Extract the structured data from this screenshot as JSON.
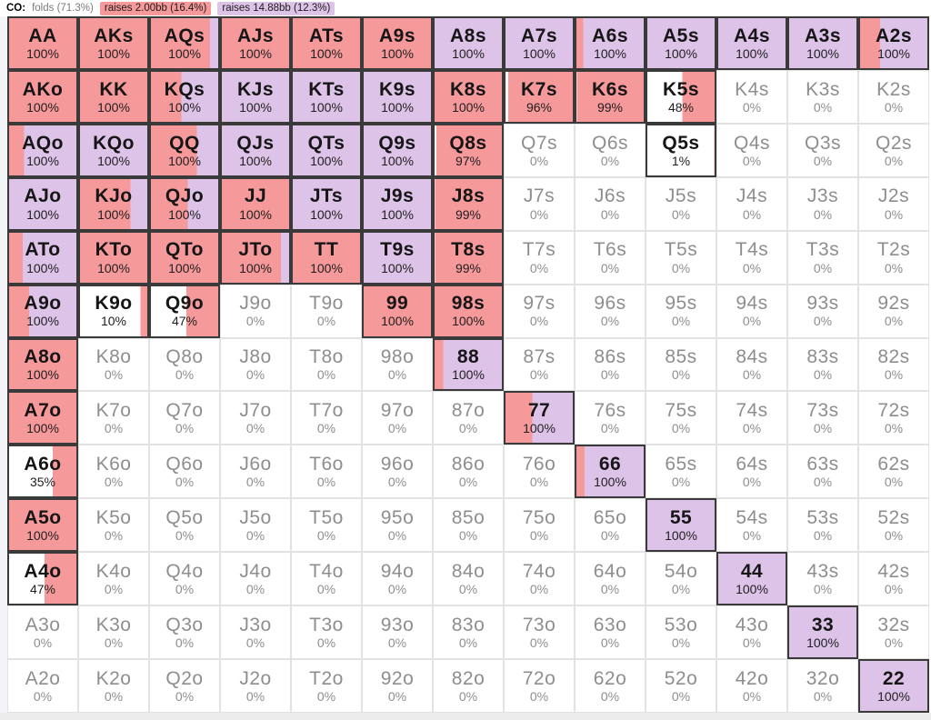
{
  "header": {
    "position_label": "CO:",
    "legend": [
      {
        "action": "fold",
        "label": "folds (71.3%)",
        "color": ""
      },
      {
        "action": "raise_small",
        "label": "raises 2.00bb (16.4%)",
        "color": "#f6999b"
      },
      {
        "action": "raise_big",
        "label": "raises 14.88bb (12.3%)",
        "color": "#ddc3e8"
      }
    ]
  },
  "colors": {
    "raise_small": "#f6999b",
    "raise_big": "#ddc3e8",
    "fold": "#ffffff",
    "active_border": "#3a3a3a",
    "inactive_border": "#e2e2e2",
    "inactive_text": "#8e8e8e",
    "active_text": "#161616"
  },
  "cell_format": [
    "hand",
    "percent_label",
    "fold_pct",
    "raise_small_pct",
    "raise_big_pct"
  ],
  "grid": {
    "rows": [
      [
        [
          "AA",
          "100%",
          0,
          100,
          0
        ],
        [
          "AKs",
          "100%",
          0,
          100,
          0
        ],
        [
          "AQs",
          "100%",
          0,
          88,
          12
        ],
        [
          "AJs",
          "100%",
          0,
          100,
          0
        ],
        [
          "ATs",
          "100%",
          0,
          100,
          0
        ],
        [
          "A9s",
          "100%",
          0,
          100,
          0
        ],
        [
          "A8s",
          "100%",
          0,
          0,
          100
        ],
        [
          "A7s",
          "100%",
          0,
          0,
          100
        ],
        [
          "A6s",
          "100%",
          0,
          10,
          90
        ],
        [
          "A5s",
          "100%",
          0,
          0,
          100
        ],
        [
          "A4s",
          "100%",
          0,
          0,
          100
        ],
        [
          "A3s",
          "100%",
          0,
          0,
          100
        ],
        [
          "A2s",
          "100%",
          0,
          30,
          70
        ]
      ],
      [
        [
          "AKo",
          "100%",
          0,
          100,
          0
        ],
        [
          "KK",
          "100%",
          0,
          100,
          0
        ],
        [
          "KQs",
          "100%",
          0,
          45,
          55
        ],
        [
          "KJs",
          "100%",
          0,
          0,
          100
        ],
        [
          "KTs",
          "100%",
          0,
          0,
          100
        ],
        [
          "K9s",
          "100%",
          0,
          0,
          100
        ],
        [
          "K8s",
          "100%",
          0,
          100,
          0
        ],
        [
          "K7s",
          "96%",
          4,
          96,
          0
        ],
        [
          "K6s",
          "99%",
          1,
          99,
          0
        ],
        [
          "K5s",
          "48%",
          52,
          48,
          0
        ],
        [
          "K4s",
          "0%",
          100,
          0,
          0
        ],
        [
          "K3s",
          "0%",
          100,
          0,
          0
        ],
        [
          "K2s",
          "0%",
          100,
          0,
          0
        ]
      ],
      [
        [
          "AQo",
          "100%",
          0,
          22,
          78
        ],
        [
          "KQo",
          "100%",
          0,
          0,
          100
        ],
        [
          "QQ",
          "100%",
          0,
          68,
          32
        ],
        [
          "QJs",
          "100%",
          0,
          0,
          100
        ],
        [
          "QTs",
          "100%",
          0,
          0,
          100
        ],
        [
          "Q9s",
          "100%",
          0,
          0,
          100
        ],
        [
          "Q8s",
          "97%",
          3,
          97,
          0
        ],
        [
          "Q7s",
          "0%",
          100,
          0,
          0
        ],
        [
          "Q6s",
          "0%",
          100,
          0,
          0
        ],
        [
          "Q5s",
          "1%",
          99,
          1,
          0
        ],
        [
          "Q4s",
          "0%",
          100,
          0,
          0
        ],
        [
          "Q3s",
          "0%",
          100,
          0,
          0
        ],
        [
          "Q2s",
          "0%",
          100,
          0,
          0
        ]
      ],
      [
        [
          "AJo",
          "100%",
          0,
          0,
          100
        ],
        [
          "KJo",
          "100%",
          0,
          75,
          25
        ],
        [
          "QJo",
          "100%",
          0,
          55,
          45
        ],
        [
          "JJ",
          "100%",
          0,
          100,
          0
        ],
        [
          "JTs",
          "100%",
          0,
          0,
          100
        ],
        [
          "J9s",
          "100%",
          0,
          0,
          100
        ],
        [
          "J8s",
          "99%",
          1,
          99,
          0
        ],
        [
          "J7s",
          "0%",
          100,
          0,
          0
        ],
        [
          "J6s",
          "0%",
          100,
          0,
          0
        ],
        [
          "J5s",
          "0%",
          100,
          0,
          0
        ],
        [
          "J4s",
          "0%",
          100,
          0,
          0
        ],
        [
          "J3s",
          "0%",
          100,
          0,
          0
        ],
        [
          "J2s",
          "0%",
          100,
          0,
          0
        ]
      ],
      [
        [
          "ATo",
          "100%",
          0,
          20,
          80
        ],
        [
          "KTo",
          "100%",
          0,
          100,
          0
        ],
        [
          "QTo",
          "100%",
          0,
          100,
          0
        ],
        [
          "JTo",
          "100%",
          0,
          88,
          12
        ],
        [
          "TT",
          "100%",
          0,
          100,
          0
        ],
        [
          "T9s",
          "100%",
          0,
          0,
          100
        ],
        [
          "T8s",
          "99%",
          1,
          99,
          0
        ],
        [
          "T7s",
          "0%",
          100,
          0,
          0
        ],
        [
          "T6s",
          "0%",
          100,
          0,
          0
        ],
        [
          "T5s",
          "0%",
          100,
          0,
          0
        ],
        [
          "T4s",
          "0%",
          100,
          0,
          0
        ],
        [
          "T3s",
          "0%",
          100,
          0,
          0
        ],
        [
          "T2s",
          "0%",
          100,
          0,
          0
        ]
      ],
      [
        [
          "A9o",
          "100%",
          0,
          30,
          70
        ],
        [
          "K9o",
          "10%",
          90,
          10,
          0
        ],
        [
          "Q9o",
          "47%",
          53,
          47,
          0
        ],
        [
          "J9o",
          "0%",
          100,
          0,
          0
        ],
        [
          "T9o",
          "0%",
          100,
          0,
          0
        ],
        [
          "99",
          "100%",
          0,
          100,
          0
        ],
        [
          "98s",
          "100%",
          0,
          100,
          0
        ],
        [
          "97s",
          "0%",
          100,
          0,
          0
        ],
        [
          "96s",
          "0%",
          100,
          0,
          0
        ],
        [
          "95s",
          "0%",
          100,
          0,
          0
        ],
        [
          "94s",
          "0%",
          100,
          0,
          0
        ],
        [
          "93s",
          "0%",
          100,
          0,
          0
        ],
        [
          "92s",
          "0%",
          100,
          0,
          0
        ]
      ],
      [
        [
          "A8o",
          "100%",
          0,
          100,
          0
        ],
        [
          "K8o",
          "0%",
          100,
          0,
          0
        ],
        [
          "Q8o",
          "0%",
          100,
          0,
          0
        ],
        [
          "J8o",
          "0%",
          100,
          0,
          0
        ],
        [
          "T8o",
          "0%",
          100,
          0,
          0
        ],
        [
          "98o",
          "0%",
          100,
          0,
          0
        ],
        [
          "88",
          "100%",
          0,
          13,
          87
        ],
        [
          "87s",
          "0%",
          100,
          0,
          0
        ],
        [
          "86s",
          "0%",
          100,
          0,
          0
        ],
        [
          "85s",
          "0%",
          100,
          0,
          0
        ],
        [
          "84s",
          "0%",
          100,
          0,
          0
        ],
        [
          "83s",
          "0%",
          100,
          0,
          0
        ],
        [
          "82s",
          "0%",
          100,
          0,
          0
        ]
      ],
      [
        [
          "A7o",
          "100%",
          0,
          100,
          0
        ],
        [
          "K7o",
          "0%",
          100,
          0,
          0
        ],
        [
          "Q7o",
          "0%",
          100,
          0,
          0
        ],
        [
          "J7o",
          "0%",
          100,
          0,
          0
        ],
        [
          "T7o",
          "0%",
          100,
          0,
          0
        ],
        [
          "97o",
          "0%",
          100,
          0,
          0
        ],
        [
          "87o",
          "0%",
          100,
          0,
          0
        ],
        [
          "77",
          "100%",
          0,
          40,
          60
        ],
        [
          "76s",
          "0%",
          100,
          0,
          0
        ],
        [
          "75s",
          "0%",
          100,
          0,
          0
        ],
        [
          "74s",
          "0%",
          100,
          0,
          0
        ],
        [
          "73s",
          "0%",
          100,
          0,
          0
        ],
        [
          "72s",
          "0%",
          100,
          0,
          0
        ]
      ],
      [
        [
          "A6o",
          "35%",
          65,
          35,
          0
        ],
        [
          "K6o",
          "0%",
          100,
          0,
          0
        ],
        [
          "Q6o",
          "0%",
          100,
          0,
          0
        ],
        [
          "J6o",
          "0%",
          100,
          0,
          0
        ],
        [
          "T6o",
          "0%",
          100,
          0,
          0
        ],
        [
          "96o",
          "0%",
          100,
          0,
          0
        ],
        [
          "86o",
          "0%",
          100,
          0,
          0
        ],
        [
          "76o",
          "0%",
          100,
          0,
          0
        ],
        [
          "66",
          "100%",
          0,
          12,
          88
        ],
        [
          "65s",
          "0%",
          100,
          0,
          0
        ],
        [
          "64s",
          "0%",
          100,
          0,
          0
        ],
        [
          "63s",
          "0%",
          100,
          0,
          0
        ],
        [
          "62s",
          "0%",
          100,
          0,
          0
        ]
      ],
      [
        [
          "A5o",
          "100%",
          0,
          100,
          0
        ],
        [
          "K5o",
          "0%",
          100,
          0,
          0
        ],
        [
          "Q5o",
          "0%",
          100,
          0,
          0
        ],
        [
          "J5o",
          "0%",
          100,
          0,
          0
        ],
        [
          "T5o",
          "0%",
          100,
          0,
          0
        ],
        [
          "95o",
          "0%",
          100,
          0,
          0
        ],
        [
          "85o",
          "0%",
          100,
          0,
          0
        ],
        [
          "75o",
          "0%",
          100,
          0,
          0
        ],
        [
          "65o",
          "0%",
          100,
          0,
          0
        ],
        [
          "55",
          "100%",
          0,
          0,
          100
        ],
        [
          "54s",
          "0%",
          100,
          0,
          0
        ],
        [
          "53s",
          "0%",
          100,
          0,
          0
        ],
        [
          "52s",
          "0%",
          100,
          0,
          0
        ]
      ],
      [
        [
          "A4o",
          "47%",
          53,
          47,
          0
        ],
        [
          "K4o",
          "0%",
          100,
          0,
          0
        ],
        [
          "Q4o",
          "0%",
          100,
          0,
          0
        ],
        [
          "J4o",
          "0%",
          100,
          0,
          0
        ],
        [
          "T4o",
          "0%",
          100,
          0,
          0
        ],
        [
          "94o",
          "0%",
          100,
          0,
          0
        ],
        [
          "84o",
          "0%",
          100,
          0,
          0
        ],
        [
          "74o",
          "0%",
          100,
          0,
          0
        ],
        [
          "64o",
          "0%",
          100,
          0,
          0
        ],
        [
          "54o",
          "0%",
          100,
          0,
          0
        ],
        [
          "44",
          "100%",
          0,
          0,
          100
        ],
        [
          "43s",
          "0%",
          100,
          0,
          0
        ],
        [
          "42s",
          "0%",
          100,
          0,
          0
        ]
      ],
      [
        [
          "A3o",
          "0%",
          100,
          0,
          0
        ],
        [
          "K3o",
          "0%",
          100,
          0,
          0
        ],
        [
          "Q3o",
          "0%",
          100,
          0,
          0
        ],
        [
          "J3o",
          "0%",
          100,
          0,
          0
        ],
        [
          "T3o",
          "0%",
          100,
          0,
          0
        ],
        [
          "93o",
          "0%",
          100,
          0,
          0
        ],
        [
          "83o",
          "0%",
          100,
          0,
          0
        ],
        [
          "73o",
          "0%",
          100,
          0,
          0
        ],
        [
          "63o",
          "0%",
          100,
          0,
          0
        ],
        [
          "53o",
          "0%",
          100,
          0,
          0
        ],
        [
          "43o",
          "0%",
          100,
          0,
          0
        ],
        [
          "33",
          "100%",
          0,
          0,
          100
        ],
        [
          "32s",
          "0%",
          100,
          0,
          0
        ]
      ],
      [
        [
          "A2o",
          "0%",
          100,
          0,
          0
        ],
        [
          "K2o",
          "0%",
          100,
          0,
          0
        ],
        [
          "Q2o",
          "0%",
          100,
          0,
          0
        ],
        [
          "J2o",
          "0%",
          100,
          0,
          0
        ],
        [
          "T2o",
          "0%",
          100,
          0,
          0
        ],
        [
          "92o",
          "0%",
          100,
          0,
          0
        ],
        [
          "82o",
          "0%",
          100,
          0,
          0
        ],
        [
          "72o",
          "0%",
          100,
          0,
          0
        ],
        [
          "62o",
          "0%",
          100,
          0,
          0
        ],
        [
          "52o",
          "0%",
          100,
          0,
          0
        ],
        [
          "42o",
          "0%",
          100,
          0,
          0
        ],
        [
          "32o",
          "0%",
          100,
          0,
          0
        ],
        [
          "22",
          "100%",
          0,
          0,
          100
        ]
      ]
    ]
  }
}
